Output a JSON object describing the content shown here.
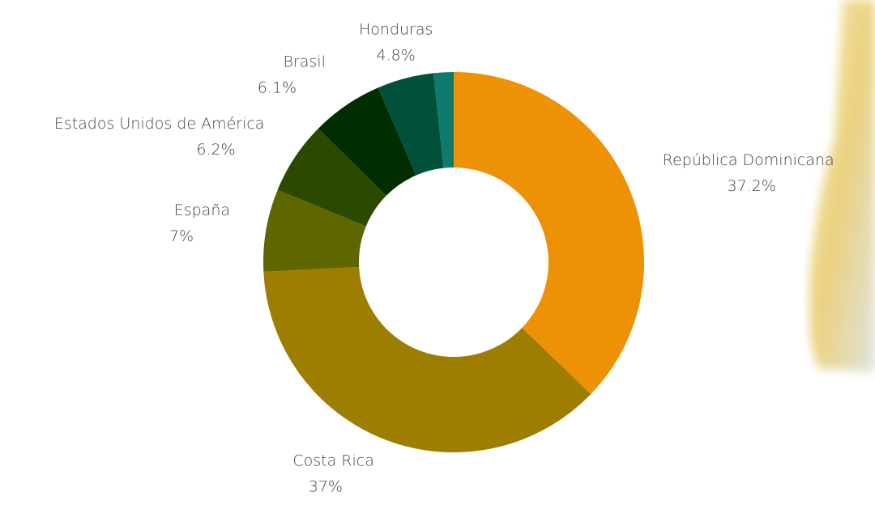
{
  "chart_data": {
    "type": "donut",
    "categories": [
      "República Dominicana",
      "Costa Rica",
      "España",
      "Estados Unidos de América",
      "Brasil",
      "Honduras",
      null
    ],
    "values": [
      37.2,
      37,
      7,
      6.2,
      6.1,
      4.8,
      1.7
    ],
    "value_labels": [
      "37.2%",
      "37%",
      "7%",
      "6.2%",
      "6.1%",
      "4.8%",
      null
    ],
    "colors": [
      "#ec9204",
      "#9e7e00",
      "#5e6600",
      "#2b4a00",
      "#002e00",
      "#00503a",
      "#0e7a6e"
    ]
  }
}
